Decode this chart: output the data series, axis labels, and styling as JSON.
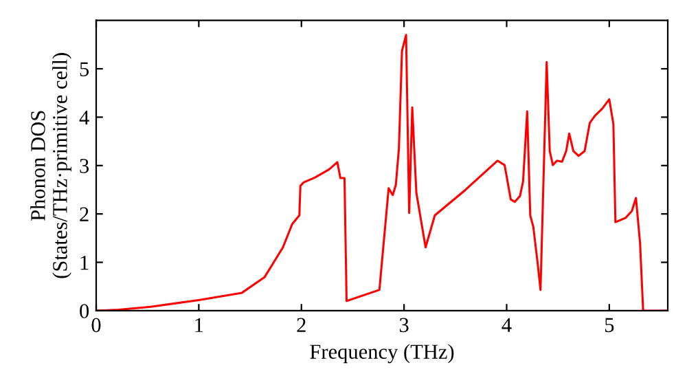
{
  "chart_data": {
    "type": "line",
    "xlabel": "Frequency (THz)",
    "ylabel": "Phonon DOS\n(States/THz·primitive cell)",
    "xlim": [
      0,
      5.57
    ],
    "ylim": [
      0,
      6
    ],
    "xticks": [
      0,
      1,
      2,
      3,
      4,
      5
    ],
    "yticks": [
      0,
      1,
      2,
      3,
      4,
      5
    ],
    "grid": false,
    "legend": false,
    "marker": "none",
    "line_style": "solid",
    "series": [
      {
        "color": "#ff0000",
        "x": [
          0,
          0.22,
          0.53,
          1.0,
          1.42,
          1.64,
          1.82,
          1.91,
          1.98,
          1.99,
          2.02,
          2.13,
          2.27,
          2.35,
          2.38,
          2.42,
          2.44,
          2.76,
          2.85,
          2.89,
          2.92,
          2.95,
          2.98,
          3.02,
          3.05,
          3.08,
          3.12,
          3.21,
          3.3,
          3.6,
          3.91,
          3.98,
          4.04,
          4.08,
          4.13,
          4.16,
          4.2,
          4.23,
          4.26,
          4.3,
          4.33,
          4.39,
          4.42,
          4.45,
          4.49,
          4.54,
          4.58,
          4.61,
          4.65,
          4.7,
          4.76,
          4.81,
          4.86,
          4.93,
          5.0,
          5.04,
          5.06,
          5.16,
          5.22,
          5.26,
          5.3,
          5.33,
          5.57
        ],
        "values": [
          0,
          0.02,
          0.08,
          0.22,
          0.37,
          0.69,
          1.31,
          1.79,
          1.97,
          2.58,
          2.65,
          2.75,
          2.92,
          3.07,
          2.74,
          2.74,
          0.2,
          0.43,
          2.53,
          2.39,
          2.6,
          3.35,
          5.37,
          5.7,
          2.02,
          4.2,
          2.44,
          1.31,
          1.97,
          2.5,
          3.1,
          3.01,
          2.3,
          2.25,
          2.37,
          2.67,
          4.12,
          1.97,
          1.73,
          1.02,
          0.43,
          5.14,
          3.3,
          3.01,
          3.1,
          3.08,
          3.3,
          3.66,
          3.3,
          3.2,
          3.3,
          3.88,
          4.03,
          4.17,
          4.37,
          3.86,
          1.83,
          1.92,
          2.06,
          2.33,
          1.4,
          0,
          0
        ]
      }
    ]
  }
}
